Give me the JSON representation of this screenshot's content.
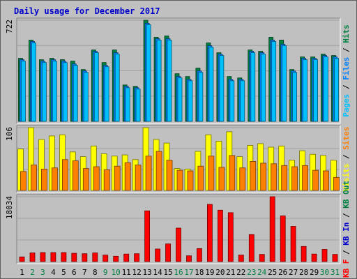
{
  "colors": {
    "background": "#c0c0c0",
    "title": "#0000cc",
    "weekday": "#000000",
    "weekend": "#008040",
    "pages": "#00c0ff",
    "files": "#0080ff",
    "hits": "#008040",
    "visits": "#ffff00",
    "sites": "#ff8000",
    "kbytes": "#ff0000"
  },
  "chart_data": {
    "type": "bar",
    "title": "Daily usage for December 2017",
    "categories": [
      "1",
      "2",
      "3",
      "4",
      "5",
      "6",
      "7",
      "8",
      "9",
      "10",
      "11",
      "12",
      "13",
      "14",
      "15",
      "16",
      "17",
      "18",
      "19",
      "20",
      "21",
      "22",
      "23",
      "24",
      "25",
      "26",
      "27",
      "28",
      "29",
      "30",
      "31"
    ],
    "weekend_days": [
      "2",
      "3",
      "9",
      "10",
      "16",
      "17",
      "23",
      "24",
      "30",
      "31"
    ],
    "panels": [
      {
        "name": "top",
        "ymax_label": "722",
        "ymax": 722,
        "right_labels": [
          {
            "text": "Pages",
            "color": "#00c0ff"
          },
          {
            "text": " / ",
            "color": "#000000"
          },
          {
            "text": "Files",
            "color": "#0080ff"
          },
          {
            "text": " / ",
            "color": "#000000"
          },
          {
            "text": "Hits",
            "color": "#008040"
          }
        ],
        "series": [
          {
            "name": "Hits",
            "color": "#008040",
            "values": [
              450,
              580,
              440,
              450,
              440,
              430,
              370,
              510,
              420,
              510,
              260,
              250,
              722,
              600,
              610,
              340,
              320,
              380,
              560,
              490,
              320,
              310,
              510,
              500,
              600,
              580,
              370,
              460,
              460,
              480,
              470
            ]
          },
          {
            "name": "Files",
            "color": "#0080ff",
            "values": [
              440,
              570,
              430,
              440,
              430,
              410,
              360,
              500,
              400,
              490,
              250,
              240,
              700,
              590,
              590,
              320,
              300,
              360,
              540,
              480,
              300,
              300,
              500,
              490,
              580,
              550,
              360,
              450,
              450,
              470,
              460
            ]
          },
          {
            "name": "Pages",
            "color": "#00c0ff",
            "values": [
              430,
              560,
              420,
              430,
              420,
              400,
              350,
              490,
              390,
              480,
              240,
              230,
              690,
              580,
              580,
              310,
              290,
              350,
              530,
              470,
              290,
              290,
              490,
              480,
              570,
              540,
              350,
              440,
              440,
              460,
              450
            ]
          }
        ]
      },
      {
        "name": "middle",
        "ymax_label": "106",
        "ymax": 106,
        "right_labels": [
          {
            "text": "Visits",
            "color": "#ffff00"
          },
          {
            "text": " / ",
            "color": "#000000"
          },
          {
            "text": "Sites",
            "color": "#ff8000"
          }
        ],
        "series": [
          {
            "name": "Visits",
            "color": "#ffff00",
            "values": [
              70,
              106,
              86,
              92,
              94,
              65,
              57,
              75,
              62,
              58,
              60,
              52,
              106,
              86,
              80,
              37,
              36,
              66,
              94,
              83,
              99,
              57,
              76,
              79,
              73,
              75,
              51,
              67,
              61,
              59,
              51
            ]
          },
          {
            "name": "Sites",
            "color": "#ff8000",
            "values": [
              32,
              43,
              36,
              38,
              52,
              50,
              37,
              40,
              35,
              41,
              47,
              43,
              58,
              66,
              51,
              34,
              33,
              41,
              58,
              39,
              59,
              38,
              49,
              46,
              45,
              42,
              40,
              42,
              34,
              33,
              22
            ]
          }
        ]
      },
      {
        "name": "bottom",
        "ymax_label": "18034",
        "ymax": 18034,
        "right_labels": [
          {
            "text": "KB F",
            "color": "#ff0000"
          },
          {
            "text": " / ",
            "color": "#000000"
          },
          {
            "text": "KB In",
            "color": "#0000cc"
          },
          {
            "text": " / ",
            "color": "#000000"
          },
          {
            "text": "KB Out",
            "color": "#008040"
          }
        ],
        "series": [
          {
            "name": "KB F",
            "color": "#ff0000",
            "values": [
              1300,
              2400,
              2500,
              2500,
              2500,
              2300,
              2200,
              2400,
              1800,
              1500,
              2100,
              2200,
              14100,
              3500,
              4900,
              9300,
              1600,
              3600,
              15900,
              14300,
              13600,
              1800,
              7500,
              2000,
              18034,
              12700,
              9800,
              4200,
              2100,
              3400,
              2000
            ]
          }
        ]
      }
    ]
  }
}
